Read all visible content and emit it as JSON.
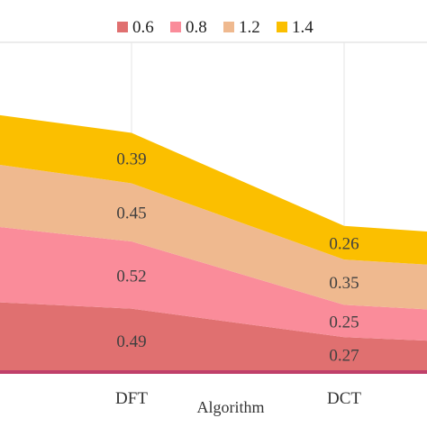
{
  "chart_data": {
    "type": "area",
    "stacked": true,
    "title": "",
    "xlabel": "Algorithm",
    "ylabel": "",
    "categories": [
      "",
      "DFT",
      "DCT",
      ""
    ],
    "ylim": [
      0,
      2.55
    ],
    "grid": {
      "vertical": true,
      "horizontal": false
    },
    "legend_placement": "top",
    "series": [
      {
        "name": "0.6",
        "color": "#E07070",
        "values": [
          0.57,
          0.49,
          0.27,
          0.2
        ],
        "labels": [
          "",
          "0.49",
          "0.27",
          ""
        ]
      },
      {
        "name": "0.8",
        "color": "#FA8C9A",
        "values": [
          0.62,
          0.52,
          0.25,
          0.23
        ],
        "labels": [
          "",
          "0.52",
          "0.25",
          ""
        ]
      },
      {
        "name": "1.2",
        "color": "#EFB98F",
        "values": [
          0.5,
          0.45,
          0.35,
          0.34
        ],
        "labels": [
          "",
          "0.45",
          "0.35",
          ""
        ]
      },
      {
        "name": "1.4",
        "color": "#FBBF00",
        "values": [
          0.38,
          0.39,
          0.26,
          0.25
        ],
        "labels": [
          "",
          "0.39",
          "0.26",
          ""
        ]
      }
    ],
    "baseline_color": "#C0406A"
  }
}
